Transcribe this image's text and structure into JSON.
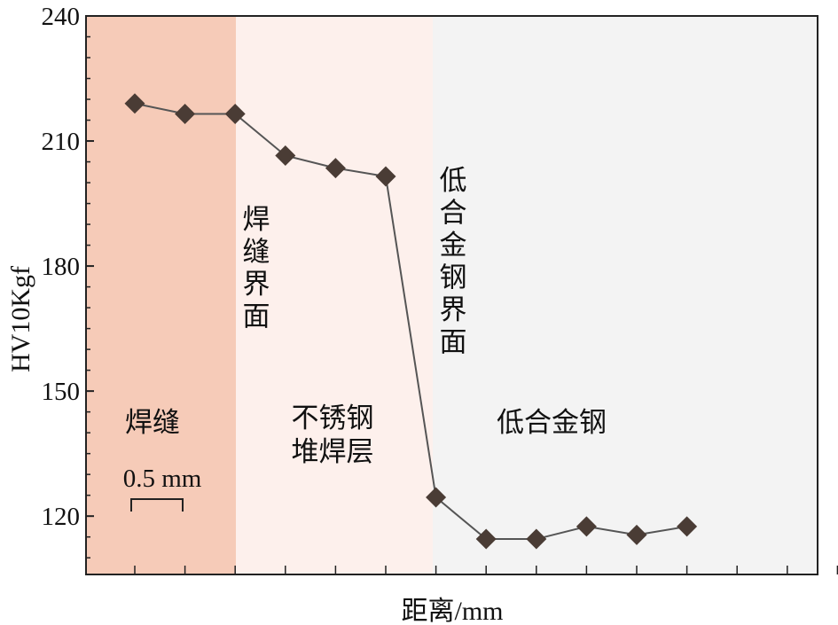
{
  "chart_data": {
    "type": "line",
    "xlabel": "距离/mm",
    "ylabel": "HV10Kgf",
    "ylim": [
      106,
      240
    ],
    "yticks": [
      120,
      150,
      180,
      210,
      240
    ],
    "ytick_labels": [
      "120",
      "150",
      "180",
      "210",
      "240"
    ],
    "x_minor_ticks": 15,
    "series": [
      {
        "x": [
          1,
          2,
          3,
          4,
          5,
          6,
          7,
          8,
          9,
          10,
          11,
          12
        ],
        "values": [
          219,
          216.5,
          216.5,
          206.5,
          203.5,
          201.5,
          124.5,
          114.5,
          114.5,
          117.5,
          115.5,
          117.5
        ],
        "color": "#4a3c35"
      }
    ],
    "regions": [
      {
        "label": "焊缝",
        "color": "#f6cbb8"
      },
      {
        "label": "不锈钢堆焊层",
        "label_lines": [
          "不锈钢",
          "堆焊层"
        ],
        "color": "#fdf0ec"
      },
      {
        "label": "低合金钢",
        "color": "#f3f3f3"
      }
    ],
    "interface_labels": [
      {
        "text": "焊缝界面",
        "chars": [
          "焊",
          "缝",
          "界",
          "面"
        ]
      },
      {
        "text": "低合金钢界面",
        "chars": [
          "低",
          "合",
          "金",
          "钢",
          "界",
          "面"
        ]
      }
    ],
    "scale_bar_label": "0.5 mm",
    "grid": false,
    "legend": "none"
  }
}
